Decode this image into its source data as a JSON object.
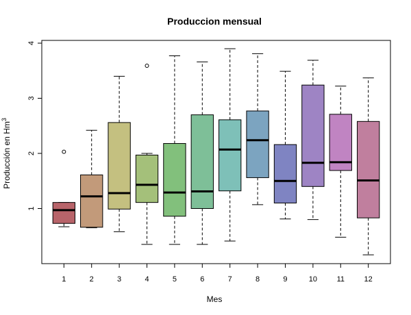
{
  "chart_data": {
    "type": "boxplot",
    "title": "Produccion mensual",
    "xlabel": "Mes",
    "ylabel": "Producción en Hm",
    "ylabel_superscript": "3",
    "ylim": [
      0.0,
      4.05
    ],
    "yticks": [
      "1",
      "2",
      "3",
      "4"
    ],
    "categories": [
      "1",
      "2",
      "3",
      "4",
      "5",
      "6",
      "7",
      "8",
      "9",
      "10",
      "11",
      "12"
    ],
    "boxes": [
      {
        "month": "1",
        "whisker_low": 0.67,
        "q1": 0.73,
        "median": 0.97,
        "q3": 1.11,
        "whisker_high": 1.11,
        "outliers": [
          2.03
        ],
        "color": "#b8646a"
      },
      {
        "month": "2",
        "whisker_low": 0.65,
        "q1": 0.66,
        "median": 1.22,
        "q3": 1.61,
        "whisker_high": 2.42,
        "outliers": [],
        "color": "#c29a7a"
      },
      {
        "month": "3",
        "whisker_low": 0.58,
        "q1": 0.99,
        "median": 1.28,
        "q3": 2.56,
        "whisker_high": 3.4,
        "outliers": [],
        "color": "#c4c080"
      },
      {
        "month": "4",
        "whisker_low": 0.35,
        "q1": 1.11,
        "median": 1.43,
        "q3": 1.97,
        "whisker_high": 2.0,
        "outliers": [
          3.59
        ],
        "color": "#a4c07a"
      },
      {
        "month": "5",
        "whisker_low": 0.35,
        "q1": 0.86,
        "median": 1.29,
        "q3": 2.18,
        "whisker_high": 3.77,
        "outliers": [],
        "color": "#82c07c"
      },
      {
        "month": "6",
        "whisker_low": 0.35,
        "q1": 1.0,
        "median": 1.31,
        "q3": 2.7,
        "whisker_high": 3.66,
        "outliers": [],
        "color": "#7ebf98"
      },
      {
        "month": "7",
        "whisker_low": 0.41,
        "q1": 1.32,
        "median": 2.07,
        "q3": 2.61,
        "whisker_high": 3.9,
        "outliers": [],
        "color": "#7ec0b8"
      },
      {
        "month": "8",
        "whisker_low": 1.07,
        "q1": 1.56,
        "median": 2.24,
        "q3": 2.77,
        "whisker_high": 3.81,
        "outliers": [],
        "color": "#7ca4c0"
      },
      {
        "month": "9",
        "whisker_low": 0.81,
        "q1": 1.1,
        "median": 1.5,
        "q3": 2.16,
        "whisker_high": 3.49,
        "outliers": [],
        "color": "#7f84c2"
      },
      {
        "month": "10",
        "whisker_low": 0.8,
        "q1": 1.4,
        "median": 1.83,
        "q3": 3.24,
        "whisker_high": 3.69,
        "outliers": [],
        "color": "#9e84c4"
      },
      {
        "month": "11",
        "whisker_low": 0.48,
        "q1": 1.69,
        "median": 1.84,
        "q3": 2.71,
        "whisker_high": 3.22,
        "outliers": [],
        "color": "#c084c2"
      },
      {
        "month": "12",
        "whisker_low": 0.16,
        "q1": 0.83,
        "median": 1.51,
        "q3": 2.58,
        "whisker_high": 3.37,
        "outliers": [],
        "color": "#c07f9e"
      }
    ],
    "grid": false,
    "legend": "none"
  }
}
